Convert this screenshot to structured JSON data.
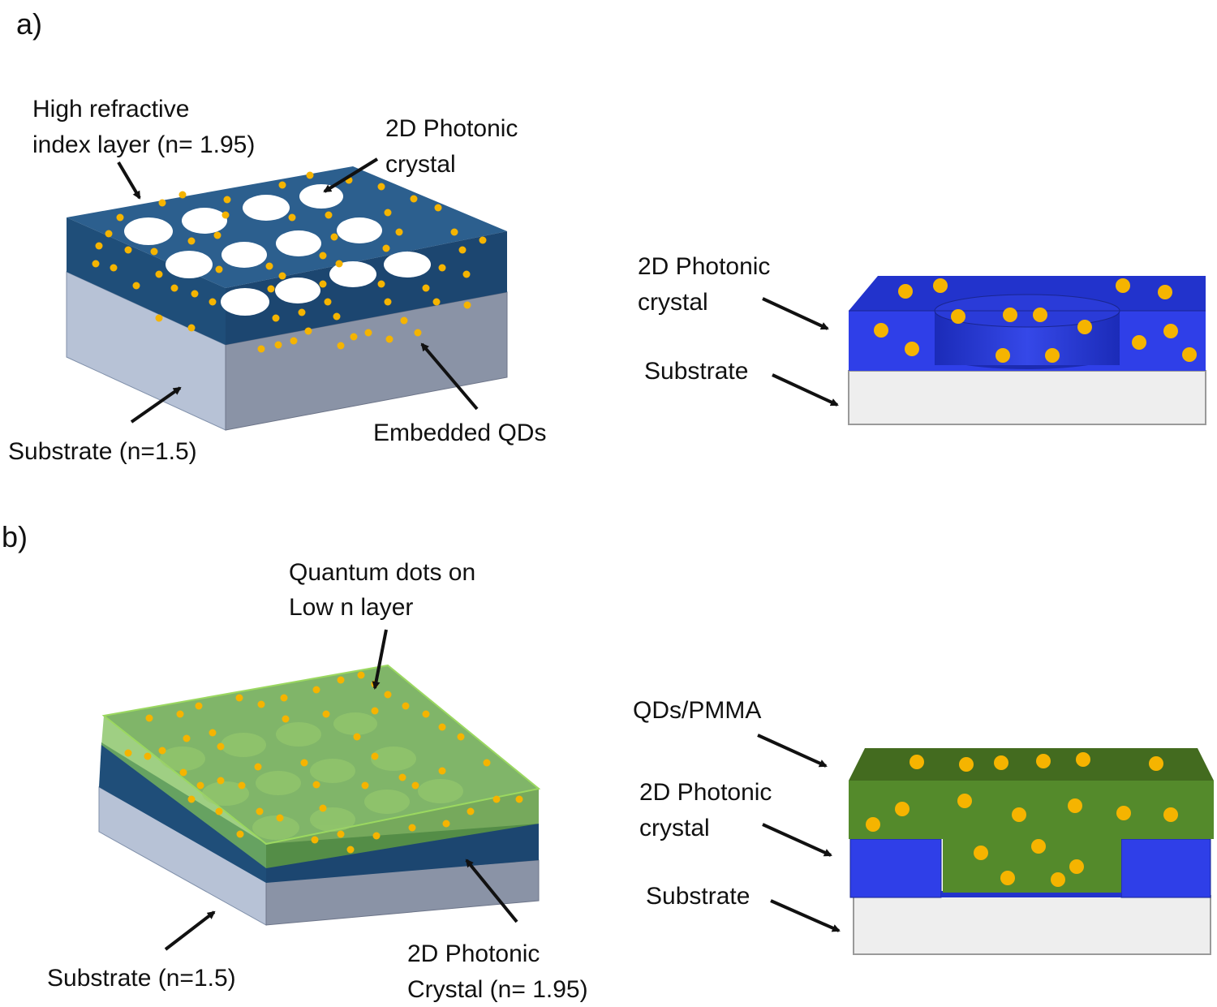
{
  "panels": {
    "a": {
      "panel_label": "a)",
      "labels": {
        "high_n_line1": "High refractive",
        "high_n_line2": "index layer (n= 1.95)",
        "pc_line1": "2D Photonic",
        "pc_line2": "crystal",
        "substrate": "Substrate (n=1.5)",
        "embedded_qds": "Embedded QDs"
      },
      "cross_section": {
        "pc_line1": "2D Photonic",
        "pc_line2": "crystal",
        "substrate": "Substrate"
      }
    },
    "b": {
      "panel_label": "b)",
      "labels": {
        "qd_line1": "Quantum dots on",
        "qd_line2": "Low n layer",
        "substrate": "Substrate (n=1.5)",
        "pc_line1": "2D Photonic",
        "pc_line2": "Crystal (n= 1.95)"
      },
      "cross_section": {
        "qds_pmma": "QDs/PMMA",
        "pc_line1": "2D Photonic",
        "pc_line2": "crystal",
        "substrate": "Substrate"
      }
    }
  },
  "colors": {
    "high_n_layer": "#1f4e79",
    "substrate": "#aab6cb",
    "qd": "#f5b400",
    "pmma_layer": "#8cc63f",
    "cross_section_pc": "#2f3fdd",
    "cross_section_substrate": "#eeeeee",
    "cross_section_pmma": "#4f7f26"
  }
}
